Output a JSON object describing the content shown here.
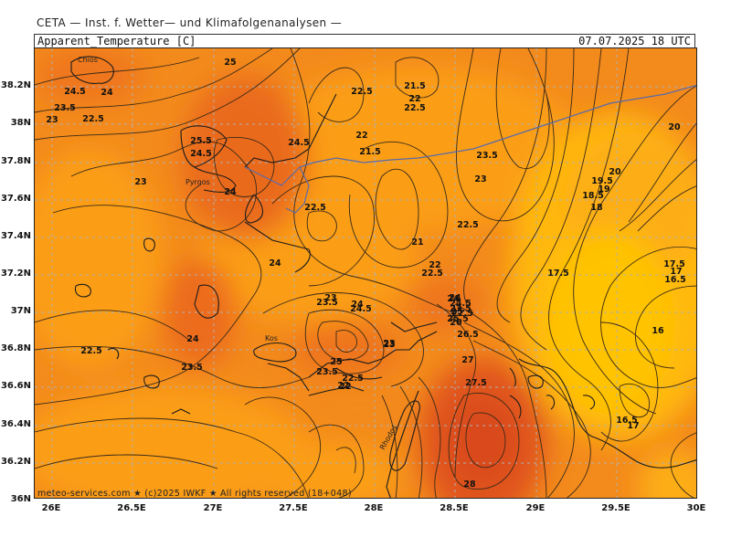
{
  "header": {
    "source_title": "CETA — Inst. f. Wetter— und Klimafolgenanalysen —",
    "parameter": "Apparent_Temperature [C]",
    "datetime": "07.07.2025 18 UTC"
  },
  "credit": "meteo-services.com ★ (c)2025 IWKF ★ All rights reserved (18+048)",
  "colors": {
    "hot": "#e8561a",
    "warm": "#f38a1c",
    "mild": "#fb9e17",
    "cool": "#ffb80a",
    "coolest": "#ffc300",
    "contour": "#3a2a18",
    "coast": "#1b1b1b",
    "border": "#5a6aa8",
    "grid": "#b0b0b0"
  },
  "axes": {
    "lat_labels": [
      "38.2N",
      "38N",
      "37.8N",
      "37.6N",
      "37.4N",
      "37.2N",
      "37N",
      "36.8N",
      "36.6N",
      "36.4N",
      "36.2N",
      "36N"
    ],
    "lon_labels": [
      "26E",
      "26.5E",
      "27E",
      "27.5E",
      "28E",
      "28.5E",
      "29E",
      "29.5E",
      "30E"
    ]
  },
  "places": [
    "Chios",
    "Pyrgos",
    "Kos",
    "Rhodos"
  ],
  "isoline_labels": [
    {
      "t": "25"
    },
    {
      "t": "24.5"
    },
    {
      "t": "24"
    },
    {
      "t": "23.5"
    },
    {
      "t": "23"
    },
    {
      "t": "22.5"
    },
    {
      "t": "25.5"
    },
    {
      "t": "24.5"
    },
    {
      "t": "23"
    },
    {
      "t": "24"
    },
    {
      "t": "24.5"
    },
    {
      "t": "22.5"
    },
    {
      "t": "22"
    },
    {
      "t": "21.5"
    },
    {
      "t": "21.5"
    },
    {
      "t": "22"
    },
    {
      "t": "22.5"
    },
    {
      "t": "22.5"
    },
    {
      "t": "21"
    },
    {
      "t": "23.5"
    },
    {
      "t": "23"
    },
    {
      "t": "22.5"
    },
    {
      "t": "20"
    },
    {
      "t": "20"
    },
    {
      "t": "19.5"
    },
    {
      "t": "19"
    },
    {
      "t": "18.5"
    },
    {
      "t": "18"
    },
    {
      "t": "17.5"
    },
    {
      "t": "17.5"
    },
    {
      "t": "17"
    },
    {
      "t": "16.5"
    },
    {
      "t": "16"
    },
    {
      "t": "16.5"
    },
    {
      "t": "17"
    },
    {
      "t": "24"
    },
    {
      "t": "22"
    },
    {
      "t": "22.5"
    },
    {
      "t": "23"
    },
    {
      "t": "23.5"
    },
    {
      "t": "24"
    },
    {
      "t": "24.5"
    },
    {
      "t": "24"
    },
    {
      "t": "24.5"
    },
    {
      "t": "25"
    },
    {
      "t": "25.5"
    },
    {
      "t": "26"
    },
    {
      "t": "26.5"
    },
    {
      "t": "27"
    },
    {
      "t": "27.5"
    },
    {
      "t": "22.5"
    },
    {
      "t": "24"
    },
    {
      "t": "23.5"
    },
    {
      "t": "23"
    },
    {
      "t": "25"
    },
    {
      "t": "23.5"
    },
    {
      "t": "22.5"
    },
    {
      "t": "22"
    },
    {
      "t": "24"
    },
    {
      "t": "23.5"
    },
    {
      "t": "22.5"
    },
    {
      "t": "23"
    },
    {
      "t": "22"
    },
    {
      "t": "28"
    }
  ]
}
